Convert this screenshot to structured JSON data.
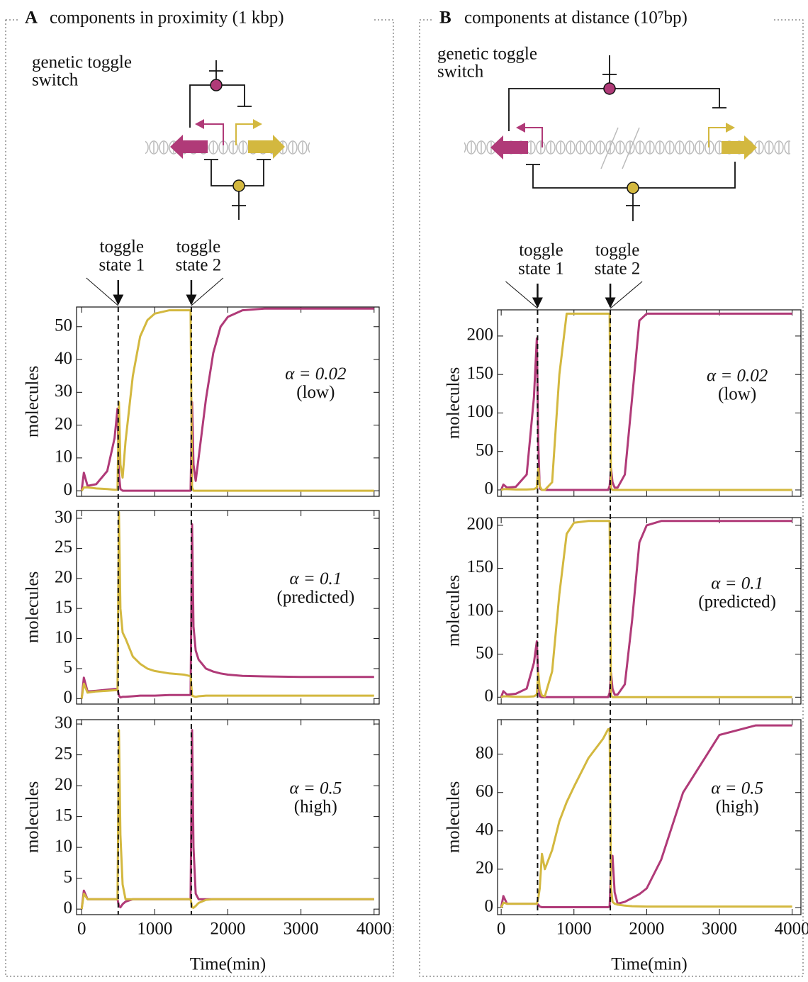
{
  "panels": [
    {
      "label": "A",
      "title": "components in proximity (1 kbp)",
      "diagram_label": [
        "genetic toggle",
        "switch"
      ],
      "toggle_labels": [
        [
          "toggle",
          "state 1"
        ],
        [
          "toggle",
          "state 2"
        ]
      ],
      "toggle_times": [
        500,
        1500
      ]
    },
    {
      "label": "B",
      "title": "components at distance (10⁷bp)",
      "diagram_label": [
        "genetic toggle",
        "switch"
      ],
      "toggle_labels": [
        [
          "toggle",
          "state 1"
        ],
        [
          "toggle",
          "state 2"
        ]
      ],
      "toggle_times": [
        500,
        1500
      ]
    }
  ],
  "chart_data": [
    {
      "type": "line",
      "ylabel": "molecules",
      "annotation": [
        "α = 0.02",
        "(low)"
      ],
      "x": [
        0,
        30,
        80,
        200,
        350,
        450,
        490,
        510,
        530,
        560,
        600,
        700,
        800,
        900,
        1000,
        1200,
        1400,
        1470,
        1490,
        1510,
        1530,
        1560,
        1600,
        1700,
        1800,
        1900,
        2000,
        2200,
        2500,
        3000,
        3500,
        4000
      ],
      "series": [
        {
          "color": "#b03a78",
          "values": [
            0,
            5.5,
            1.5,
            2,
            6,
            16,
            25,
            5,
            0.5,
            0,
            0,
            0,
            0,
            0,
            0,
            0,
            0,
            0,
            0,
            27,
            8,
            3,
            10,
            28,
            42,
            50,
            53,
            55,
            55.5,
            55.5,
            55.5,
            55.5
          ]
        },
        {
          "color": "#d3b83f",
          "values": [
            0,
            1,
            1,
            0.7,
            0.5,
            0.3,
            0.3,
            27,
            8,
            4,
            15,
            35,
            47,
            52,
            54,
            55,
            55,
            55,
            55,
            1,
            0,
            0,
            0,
            0,
            0,
            0,
            0,
            0,
            0,
            0,
            0,
            0
          ]
        }
      ],
      "xlim": [
        -70,
        4070
      ],
      "xticks": [
        0,
        1000,
        2000,
        3000,
        4000
      ],
      "ylim": [
        -1.7,
        56
      ],
      "yticks": [
        0,
        10,
        20,
        30,
        40,
        50
      ]
    },
    {
      "type": "line",
      "ylabel": "molecules",
      "annotation": [
        "α = 0.1",
        "(predicted)"
      ],
      "x": [
        0,
        30,
        80,
        200,
        350,
        450,
        490,
        510,
        530,
        560,
        600,
        700,
        800,
        900,
        1000,
        1200,
        1400,
        1470,
        1490,
        1510,
        1530,
        1560,
        1600,
        1700,
        1800,
        1900,
        2000,
        2200,
        2500,
        3000,
        3500,
        4000
      ],
      "series": [
        {
          "color": "#b03a78",
          "values": [
            0,
            3.5,
            1.2,
            1.3,
            1.5,
            1.6,
            1.6,
            0.5,
            0.2,
            0.3,
            0.3,
            0.4,
            0.5,
            0.5,
            0.5,
            0.6,
            0.6,
            0.6,
            0.6,
            29,
            12,
            8,
            6.5,
            5,
            4.5,
            4.2,
            4,
            3.8,
            3.7,
            3.6,
            3.6,
            3.6
          ]
        },
        {
          "color": "#d3b83f",
          "values": [
            0,
            2.5,
            1,
            1.2,
            1.3,
            1.4,
            1.4,
            31,
            15,
            11,
            10,
            7,
            5.8,
            5,
            4.6,
            4.2,
            4,
            3.8,
            3.8,
            0.5,
            0.4,
            0.3,
            0.4,
            0.5,
            0.5,
            0.5,
            0.5,
            0.5,
            0.5,
            0.5,
            0.5,
            0.5
          ]
        }
      ],
      "xlim": [
        -70,
        4070
      ],
      "xticks": [
        0,
        1000,
        2000,
        3000,
        4000
      ],
      "ylim": [
        -0.9,
        31.3
      ],
      "yticks": [
        0,
        5,
        10,
        15,
        20,
        25,
        30
      ]
    },
    {
      "type": "line",
      "ylabel": "molecules",
      "annotation": [
        "α = 0.5",
        "(high)"
      ],
      "xlabel": "Time(min)",
      "x": [
        0,
        30,
        80,
        200,
        350,
        450,
        490,
        510,
        530,
        560,
        600,
        700,
        800,
        900,
        1000,
        1200,
        1400,
        1470,
        1490,
        1510,
        1530,
        1560,
        1600,
        1700,
        1800,
        1900,
        2000,
        2200,
        2500,
        3000,
        3500,
        4000
      ],
      "series": [
        {
          "color": "#b03a78",
          "values": [
            0,
            3,
            1.6,
            1.6,
            1.6,
            1.6,
            1.6,
            0.5,
            0.3,
            0.8,
            1.2,
            1.6,
            1.6,
            1.6,
            1.6,
            1.6,
            1.6,
            1.6,
            1.6,
            29,
            10,
            2.5,
            1.6,
            1.6,
            1.6,
            1.6,
            1.6,
            1.6,
            1.6,
            1.6,
            1.6,
            1.6
          ]
        },
        {
          "color": "#d3b83f",
          "values": [
            0,
            2.5,
            1.6,
            1.6,
            1.6,
            1.6,
            1.6,
            29,
            12,
            4,
            1.6,
            1.6,
            1.6,
            1.6,
            1.6,
            1.6,
            1.6,
            1.6,
            1.6,
            0.3,
            0.2,
            0.5,
            1,
            1.5,
            1.6,
            1.6,
            1.6,
            1.6,
            1.6,
            1.6,
            1.6,
            1.6
          ]
        }
      ],
      "xlim": [
        -70,
        4070
      ],
      "xticks": [
        0,
        1000,
        2000,
        3000,
        4000
      ],
      "ylim": [
        -0.9,
        30.7
      ],
      "yticks": [
        0,
        5,
        10,
        15,
        20,
        25,
        30
      ]
    },
    {
      "type": "line",
      "ylabel": "molecules",
      "annotation": [
        "α = 0.02",
        "(low)"
      ],
      "x": [
        0,
        30,
        80,
        200,
        350,
        450,
        490,
        510,
        530,
        560,
        600,
        700,
        800,
        900,
        1000,
        1200,
        1400,
        1470,
        1490,
        1510,
        1530,
        1560,
        1600,
        1700,
        1800,
        1900,
        2000,
        2200,
        2500,
        3000,
        3500,
        4000
      ],
      "series": [
        {
          "color": "#b03a78",
          "values": [
            0,
            7,
            3,
            4,
            20,
            120,
            197,
            60,
            2,
            0,
            0,
            0,
            0,
            0,
            0,
            0,
            0,
            0,
            5,
            28,
            10,
            3,
            3,
            20,
            120,
            220,
            229,
            229,
            229,
            229,
            229,
            229
          ]
        },
        {
          "color": "#d3b83f",
          "values": [
            0,
            1,
            1,
            0.5,
            0.5,
            1,
            3,
            28,
            5,
            0,
            0,
            10,
            150,
            229,
            229,
            229,
            229,
            229,
            229,
            2,
            0,
            0,
            0,
            0,
            0,
            0,
            0,
            0,
            0,
            0,
            0,
            0
          ]
        }
      ],
      "xlim": [
        -50,
        4120
      ],
      "xticks": [
        0,
        1000,
        2000,
        3000,
        4000
      ],
      "ylim": [
        -8.3,
        234
      ],
      "yticks": [
        0,
        50,
        100,
        150,
        200
      ]
    },
    {
      "type": "line",
      "ylabel": "molecules",
      "annotation": [
        "α = 0.1",
        "(predicted)"
      ],
      "x": [
        0,
        30,
        80,
        200,
        350,
        450,
        490,
        510,
        530,
        560,
        600,
        700,
        800,
        900,
        1000,
        1200,
        1400,
        1470,
        1490,
        1510,
        1530,
        1560,
        1600,
        1700,
        1800,
        1900,
        2000,
        2200,
        2500,
        3000,
        3500,
        4000
      ],
      "series": [
        {
          "color": "#b03a78",
          "values": [
            0,
            7,
            3,
            4,
            10,
            40,
            65,
            20,
            1,
            0,
            0,
            0,
            0,
            0,
            0,
            0,
            0,
            0,
            5,
            28,
            10,
            3,
            3,
            15,
            90,
            180,
            200,
            205,
            205,
            205,
            205,
            205
          ]
        },
        {
          "color": "#d3b83f",
          "values": [
            0,
            1,
            1,
            0.5,
            0.5,
            1,
            3,
            28,
            10,
            2,
            1,
            30,
            120,
            190,
            203,
            205,
            205,
            205,
            205,
            2,
            0,
            0,
            0,
            0,
            0,
            0,
            0,
            0,
            0,
            0,
            0,
            0
          ]
        }
      ],
      "xlim": [
        -50,
        4120
      ],
      "xticks": [
        0,
        1000,
        2000,
        3000,
        4000
      ],
      "ylim": [
        -8,
        209
      ],
      "yticks": [
        0,
        50,
        100,
        150,
        200
      ]
    },
    {
      "type": "line",
      "ylabel": "molecules",
      "annotation": [
        "α = 0.5",
        "(high)"
      ],
      "xlabel": "Time(min)",
      "x": [
        0,
        30,
        80,
        200,
        350,
        450,
        490,
        510,
        530,
        560,
        600,
        700,
        800,
        900,
        1000,
        1200,
        1400,
        1470,
        1490,
        1510,
        1530,
        1560,
        1600,
        1700,
        1800,
        1900,
        2000,
        2200,
        2500,
        3000,
        3500,
        4000
      ],
      "series": [
        {
          "color": "#b03a78",
          "values": [
            0,
            6,
            2,
            2,
            2,
            2,
            2,
            1.5,
            0.5,
            0.2,
            0.2,
            0.2,
            0.2,
            0.2,
            0.2,
            0.2,
            0.2,
            0.2,
            0.5,
            20,
            27,
            8,
            2,
            3,
            5,
            7,
            10,
            25,
            60,
            90,
            95,
            95
          ]
        },
        {
          "color": "#d3b83f",
          "values": [
            0,
            2.5,
            2,
            2,
            2,
            2,
            2,
            5,
            10,
            28,
            20,
            30,
            45,
            55,
            63,
            78,
            88,
            93,
            93,
            10,
            3,
            2,
            1.5,
            1,
            0.7,
            0.6,
            0.5,
            0.5,
            0.5,
            0.5,
            0.5,
            0.5
          ]
        }
      ],
      "xlim": [
        -50,
        4120
      ],
      "xticks": [
        0,
        1000,
        2000,
        3000,
        4000
      ],
      "ylim": [
        -3.7,
        98
      ],
      "yticks": [
        0,
        20,
        40,
        60,
        80
      ]
    }
  ]
}
